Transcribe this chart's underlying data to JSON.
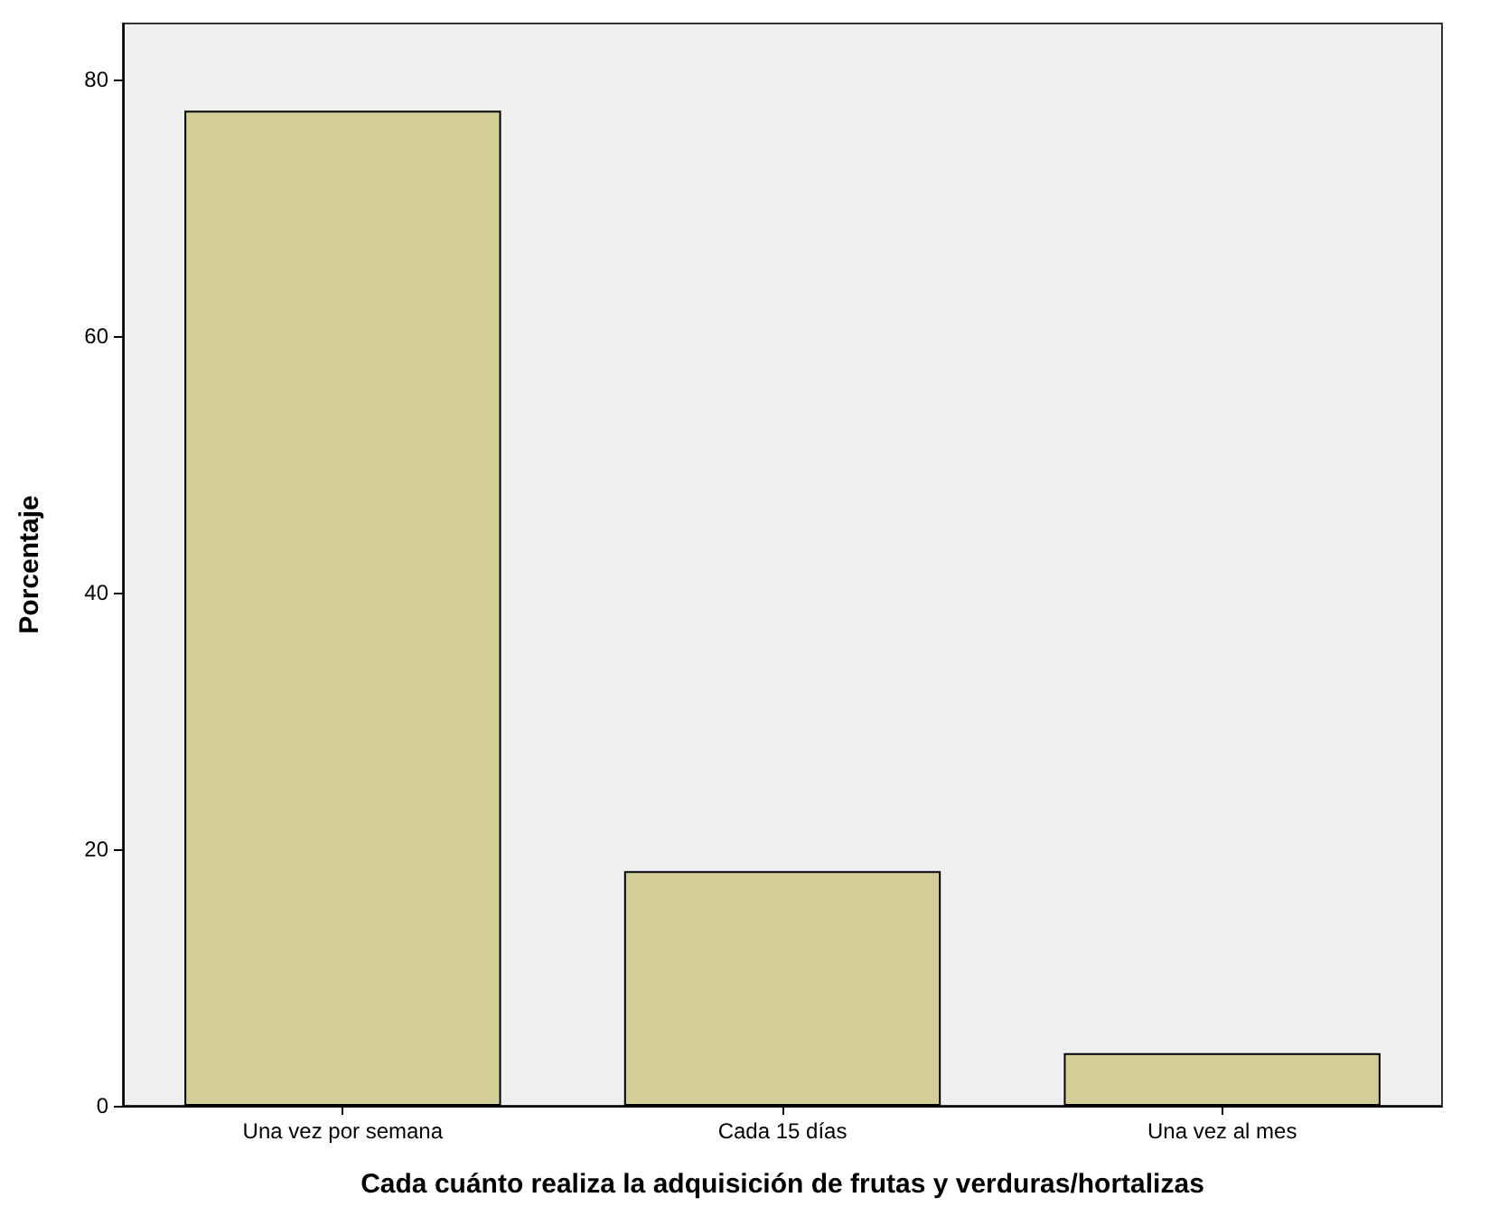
{
  "chart_data": {
    "type": "bar",
    "xlabel": "Cada cuánto realiza la adquisición de frutas y verduras/hortalizas",
    "ylabel": "Porcentaje",
    "categories": [
      "Una vez por semana",
      "Cada 15 días",
      "Una vez al mes"
    ],
    "values": [
      77.6,
      18.3,
      4.1
    ],
    "color": "#d3ce97",
    "ylim": [
      0,
      84.4
    ],
    "yticks": [
      0,
      20,
      40,
      60,
      80
    ]
  }
}
